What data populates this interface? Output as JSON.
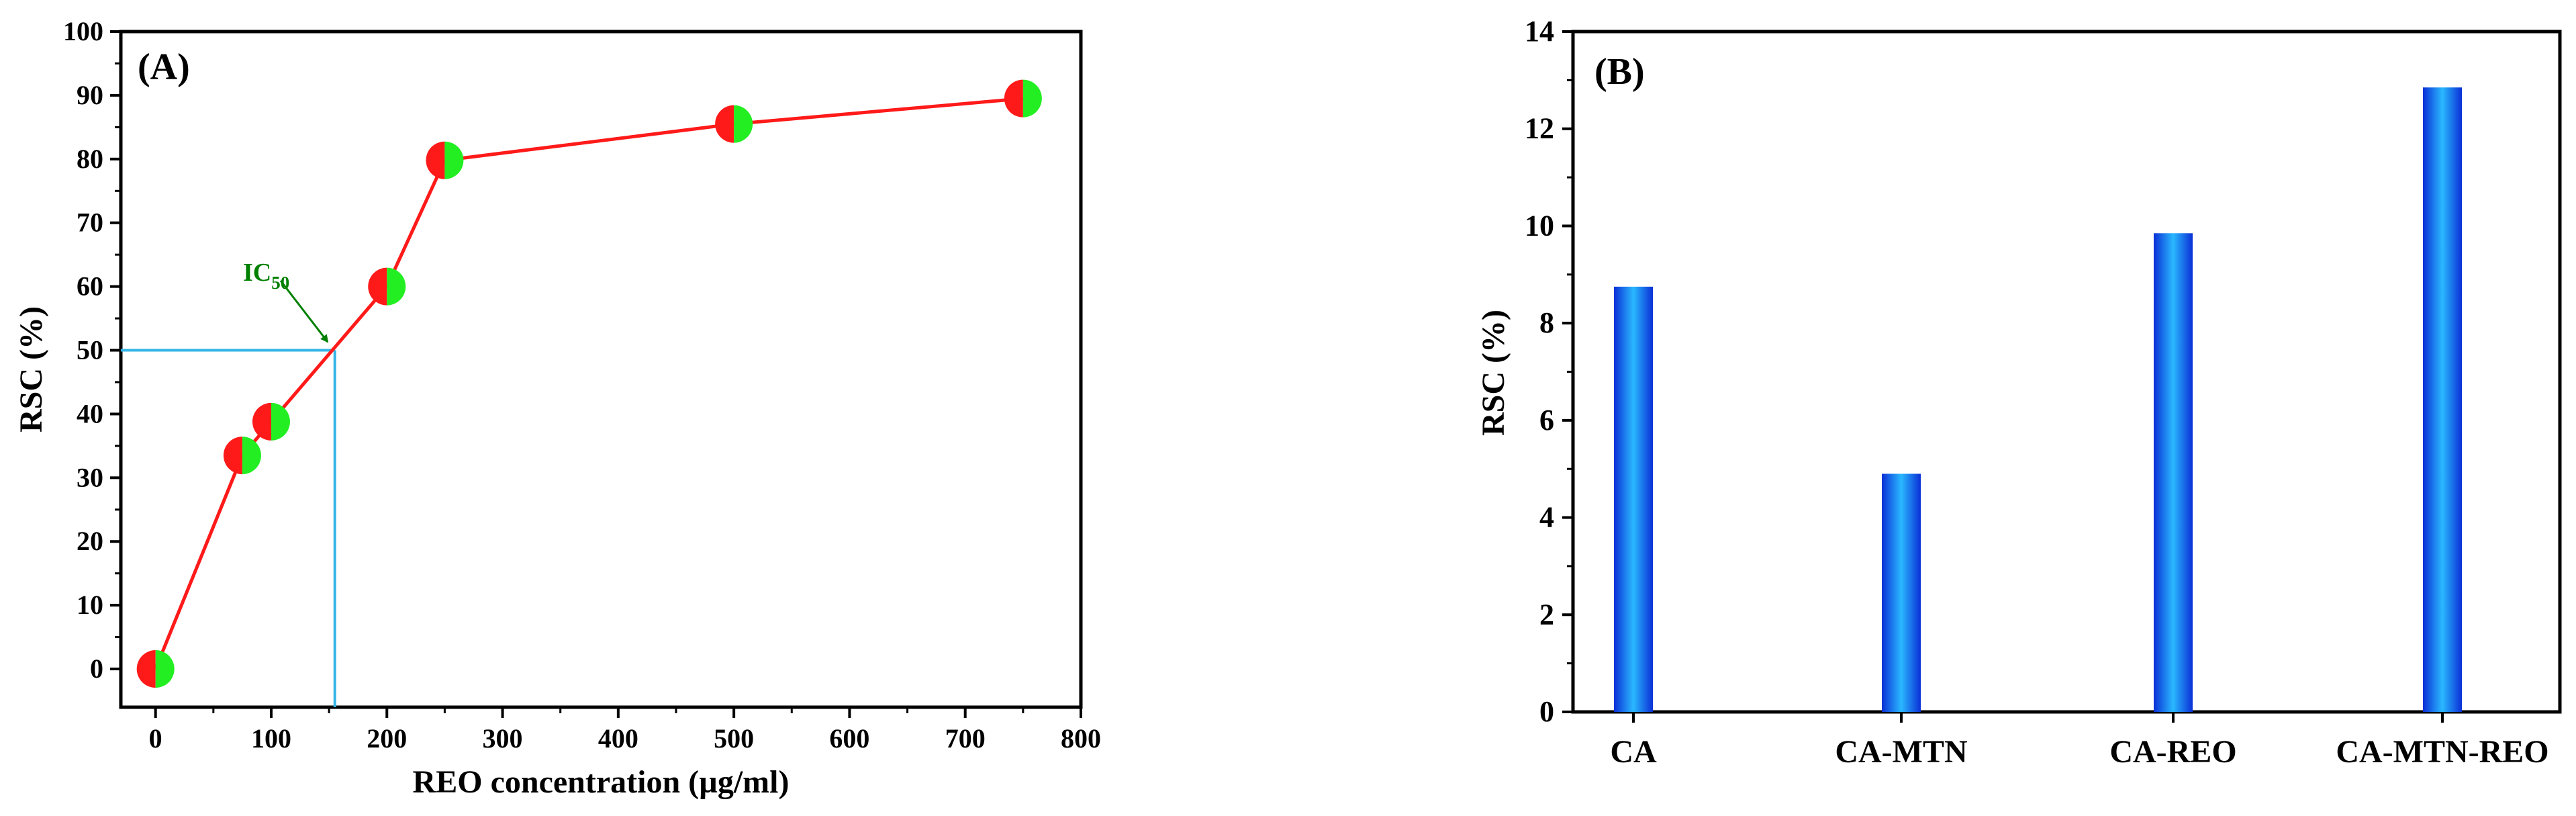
{
  "chart_data": [
    {
      "type": "line",
      "panel_label": "(A)",
      "xlabel": "REO concentration (µg/ml)",
      "ylabel": "RSC (%)",
      "xlim": [
        -30,
        800
      ],
      "ylim": [
        -6,
        100
      ],
      "xticks": [
        0,
        100,
        200,
        300,
        400,
        500,
        600,
        700,
        800
      ],
      "yticks": [
        0,
        10,
        20,
        30,
        40,
        50,
        60,
        70,
        80,
        90,
        100
      ],
      "grid": false,
      "series": [
        {
          "x": [
            0,
            75,
            100,
            200,
            250,
            500,
            750
          ],
          "y": [
            0,
            33.5,
            38.8,
            60,
            79.8,
            85.5,
            89.5
          ],
          "color": "#ff1a1a",
          "marker_colors": [
            "#ff1a1a",
            "#22ee22"
          ]
        }
      ],
      "annotation": {
        "text": "IC",
        "subscript": "50",
        "color": "#008000",
        "point": [
          155,
          50
        ],
        "guide_color": "#33b5e5"
      }
    },
    {
      "type": "bar",
      "panel_label": "(B)",
      "categories": [
        "CA",
        "CA-MTN",
        "CA-REO",
        "CA-MTN-REO"
      ],
      "values": [
        8.75,
        4.9,
        9.85,
        12.85
      ],
      "xlabel": "",
      "ylabel": "RSC (%)",
      "ylim": [
        0,
        14
      ],
      "yticks": [
        0,
        2,
        4,
        6,
        8,
        10,
        12,
        14
      ],
      "grid": false,
      "bar_colors": [
        "#0a2fd6",
        "#2ab8ff"
      ]
    }
  ]
}
